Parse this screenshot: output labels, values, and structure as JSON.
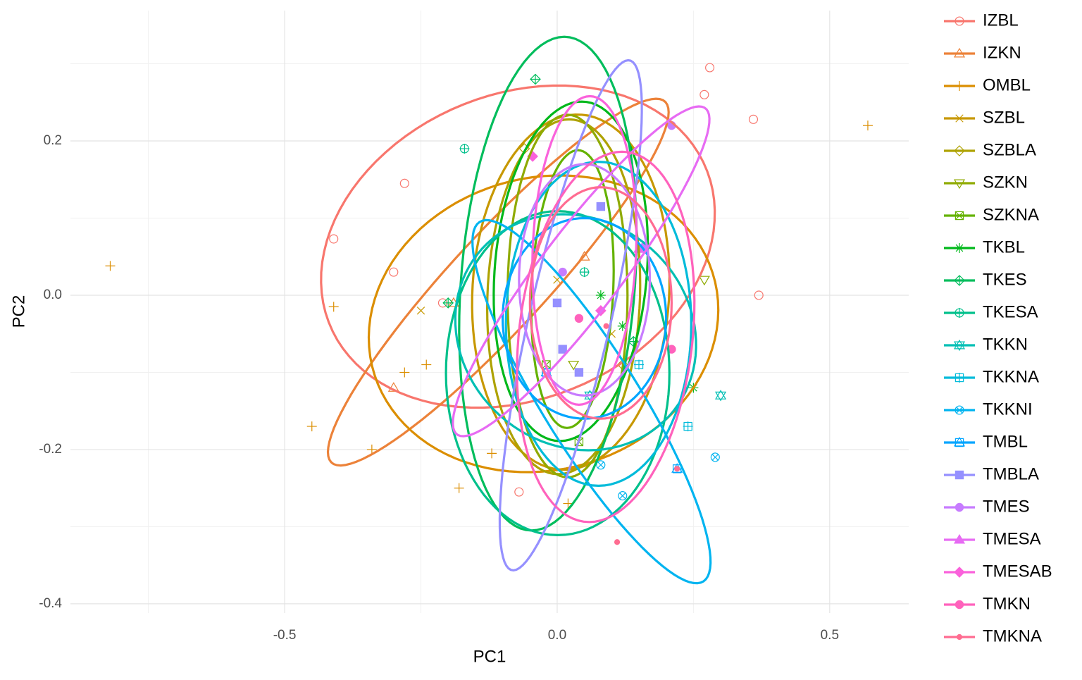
{
  "chart_data": {
    "type": "scatter-ellipse",
    "x_label": "PC1",
    "y_label": "PC2",
    "xlim": [
      -0.893,
      0.645
    ],
    "ylim": [
      -0.412,
      0.369
    ],
    "xticks": [
      -0.5,
      {
        "value": 0,
        "label": "0.0"
      },
      0.5
    ],
    "yticks": [
      -0.4,
      -0.2,
      {
        "value": 0,
        "label": "0.0"
      },
      0.2
    ],
    "xminor": [
      -0.75,
      -0.25,
      0.25
    ],
    "yminor": [
      -0.3,
      -0.1,
      0.1,
      0.3
    ],
    "grid": true,
    "series": [
      {
        "name": "IZBL",
        "color": "#F8766D",
        "shape": "circle",
        "x": [
          0.36,
          0.37,
          -0.41,
          -0.28,
          0.28,
          -0.07,
          0.27,
          -0.3,
          -0.21
        ],
        "y": [
          0.228,
          0,
          0.073,
          0.145,
          0.295,
          -0.255,
          0.26,
          0.03,
          -0.01
        ],
        "center": [
          -0.072,
          0.063
        ],
        "axis_a": [
          0.36,
          0.06
        ],
        "axis_b": [
          -0.03,
          0.2
        ]
      },
      {
        "name": "IZKN",
        "color": "#EC8239",
        "shape": "triangle",
        "x": [
          -0.3,
          -0.19,
          0.05
        ],
        "y": [
          -0.12,
          -0.01,
          0.05
        ],
        "center": [
          -0.108,
          0.017
        ],
        "axis_a": [
          0.31,
          0.23
        ],
        "axis_b": [
          -0.04,
          0.06
        ]
      },
      {
        "name": "OMBL",
        "color": "#DB8E00",
        "shape": "plus",
        "x": [
          -0.82,
          0.57,
          -0.45,
          -0.34,
          -0.18,
          -0.41,
          0.02,
          -0.12,
          -0.28,
          -0.24
        ],
        "y": [
          0.038,
          0.22,
          -0.17,
          -0.2,
          -0.25,
          -0.015,
          -0.27,
          -0.205,
          -0.1,
          -0.09
        ],
        "center": [
          -0.025,
          -0.037
        ],
        "axis_a": [
          0.32,
          0.03
        ],
        "axis_b": [
          -0.02,
          0.19
        ]
      },
      {
        "name": "SZBL",
        "color": "#C79800",
        "shape": "cross",
        "x": [
          -0.25,
          0,
          0.1
        ],
        "y": [
          -0.02,
          0.02,
          -0.05
        ],
        "center": [
          0.025,
          0.004
        ],
        "axis_a": [
          0.02,
          0.23
        ],
        "axis_b": [
          0.18,
          -0.01
        ]
      },
      {
        "name": "SZBLA",
        "color": "#AEA200",
        "shape": "diamond",
        "x": [
          -0.06,
          0.12
        ],
        "y": [
          0.19,
          -0.09
        ],
        "center": [
          0.012,
          -0.002
        ],
        "axis_a": [
          0.01,
          0.23
        ],
        "axis_b": [
          0.14,
          0
        ]
      },
      {
        "name": "SZKN",
        "color": "#8FAA00",
        "shape": "triangle-down",
        "x": [
          0.27,
          0.03
        ],
        "y": [
          0.02,
          -0.09
        ],
        "center": [
          0.019,
          -0.001
        ],
        "axis_a": [
          0,
          0.235
        ],
        "axis_b": [
          0.11,
          0
        ]
      },
      {
        "name": "SZKNA",
        "color": "#64B200",
        "shape": "square-cross",
        "x": [
          0.04,
          -0.02
        ],
        "y": [
          -0.19,
          -0.09
        ],
        "center": [
          0.028,
          0.008
        ],
        "axis_a": [
          0.01,
          0.18
        ],
        "axis_b": [
          0.075,
          0
        ]
      },
      {
        "name": "TKBL",
        "color": "#00B81B",
        "shape": "asterisk",
        "x": [
          0.08,
          0.12,
          0.25
        ],
        "y": [
          0,
          -0.04,
          -0.12
        ],
        "center": [
          0.025,
          0.031
        ],
        "axis_a": [
          0.02,
          0.22
        ],
        "axis_b": [
          0.14,
          0
        ]
      },
      {
        "name": "TKES",
        "color": "#00BD5C",
        "shape": "diamond-plus",
        "x": [
          -0.04,
          -0.2,
          0.14
        ],
        "y": [
          0.28,
          -0.01,
          -0.06
        ],
        "center": [
          -0.017,
          0.015
        ],
        "axis_a": [
          0.03,
          0.32
        ],
        "axis_b": [
          0.16,
          0
        ]
      },
      {
        "name": "TKESA",
        "color": "#00C08B",
        "shape": "circle-plus",
        "x": [
          -0.17,
          0.05
        ],
        "y": [
          0.19,
          0.03
        ],
        "center": [
          0.001,
          -0.101
        ],
        "axis_a": [
          0.205,
          0
        ],
        "axis_b": [
          0,
          0.21
        ]
      },
      {
        "name": "TKKN",
        "color": "#00BFB4",
        "shape": "star",
        "x": [
          0.3,
          0.06
        ],
        "y": [
          -0.13,
          -0.13
        ],
        "center": [
          0.034,
          -0.048
        ],
        "axis_a": [
          0.22,
          -0.03
        ],
        "axis_b": [
          0.02,
          0.15
        ]
      },
      {
        "name": "TKKNA",
        "color": "#00BBDA",
        "shape": "square-plus",
        "x": [
          0.24,
          0.15
        ],
        "y": [
          -0.17,
          -0.09
        ],
        "center": [
          0.076,
          -0.037
        ],
        "axis_a": [
          0.17,
          0
        ],
        "axis_b": [
          0,
          0.21
        ]
      },
      {
        "name": "TKKNI",
        "color": "#00B4F0",
        "shape": "circle-cross",
        "x": [
          0.29,
          0.12,
          0.08
        ],
        "y": [
          -0.21,
          -0.26,
          -0.22
        ],
        "center": [
          0.063,
          -0.138
        ],
        "axis_a": [
          0.21,
          -0.23
        ],
        "axis_b": [
          0.06,
          0.05
        ]
      },
      {
        "name": "TMBL",
        "color": "#00A5FF",
        "shape": "square-star",
        "x": [
          0.22,
          -0.02
        ],
        "y": [
          -0.225,
          -0.1
        ],
        "center": [
          0.05,
          -0.03
        ],
        "axis_a": [
          0.15,
          0
        ],
        "axis_b": [
          0,
          0.13
        ]
      },
      {
        "name": "TMBLA",
        "color": "#9590FF",
        "shape": "square-filled",
        "x": [
          0.08,
          0,
          0.01,
          0.04
        ],
        "y": [
          0.115,
          -0.01,
          -0.07,
          -0.1
        ],
        "center": [
          0.025,
          -0.026
        ],
        "axis_a": [
          0.11,
          0.33
        ],
        "axis_b": [
          0.07,
          -0.02
        ]
      },
      {
        "name": "TMES",
        "color": "#C77CFF",
        "shape": "circle-filled",
        "x": [
          0.01,
          0.16,
          0.21
        ],
        "y": [
          0.03,
          0.063,
          0.22
        ],
        "center": [
          0.05,
          0.02
        ],
        "axis_a": [
          0.12,
          0
        ],
        "axis_b": [
          0,
          0.15
        ]
      },
      {
        "name": "TMESA",
        "color": "#E76BF3",
        "shape": "triangle-filled",
        "x": [
          0.15
        ],
        "y": [
          0.06
        ],
        "center": [
          0.044,
          0.031
        ],
        "axis_a": [
          0.23,
          0.21
        ],
        "axis_b": [
          -0.05,
          0.04
        ]
      },
      {
        "name": "TMESAB",
        "color": "#FA62DB",
        "shape": "diamond-filled",
        "x": [
          -0.045,
          0.08
        ],
        "y": [
          0.18,
          -0.02
        ],
        "center": [
          0.05,
          0.058
        ],
        "axis_a": [
          0.01,
          0.2
        ],
        "axis_b": [
          0.095,
          0
        ]
      },
      {
        "name": "TMKN",
        "color": "#FF62BC",
        "shape": "circle-filled",
        "x": [
          0.21,
          0.04
        ],
        "y": [
          -0.07,
          -0.03
        ],
        "center": [
          0.089,
          -0.054
        ],
        "axis_a": [
          0.03,
          0.24
        ],
        "axis_b": [
          0.16,
          0
        ]
      },
      {
        "name": "TMKNA",
        "color": "#FF6C91",
        "shape": "dot-filled",
        "x": [
          0.22,
          0.11,
          0.09
        ],
        "y": [
          -0.225,
          -0.32,
          -0.04
        ],
        "center": [
          0.08,
          -0.01
        ],
        "axis_a": [
          0,
          0.15
        ],
        "axis_b": [
          0.13,
          0
        ]
      }
    ]
  }
}
